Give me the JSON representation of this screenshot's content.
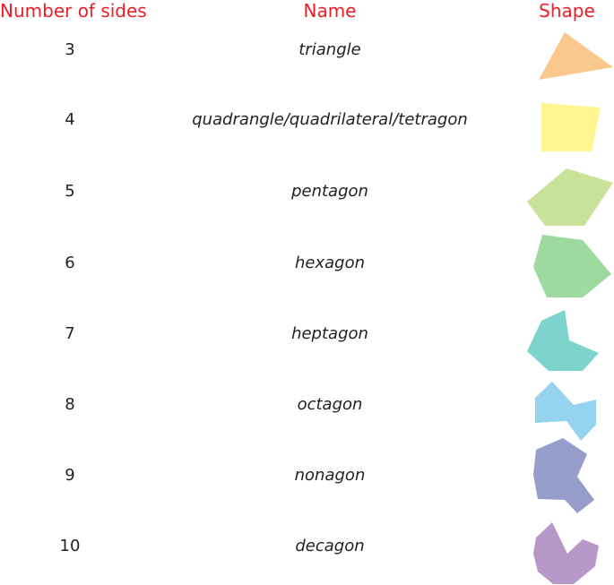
{
  "headers": {
    "sides": "Number of sides",
    "name": "Name",
    "shape": "Shape",
    "color": "#ee1c25"
  },
  "rows": [
    {
      "sides": "3",
      "name": "triangle",
      "color": "#fac88c"
    },
    {
      "sides": "4",
      "name": "quadrangle/quadrilateral/tetragon",
      "color": "#fff68f"
    },
    {
      "sides": "5",
      "name": "pentagon",
      "color": "#c9e39b"
    },
    {
      "sides": "6",
      "name": "hexagon",
      "color": "#9ed9a0"
    },
    {
      "sides": "7",
      "name": "heptagon",
      "color": "#7cd4cd"
    },
    {
      "sides": "8",
      "name": "octagon",
      "color": "#95d3ee"
    },
    {
      "sides": "9",
      "name": "nonagon",
      "color": "#979dcb"
    },
    {
      "sides": "10",
      "name": "decagon",
      "color": "#b699c8"
    }
  ]
}
